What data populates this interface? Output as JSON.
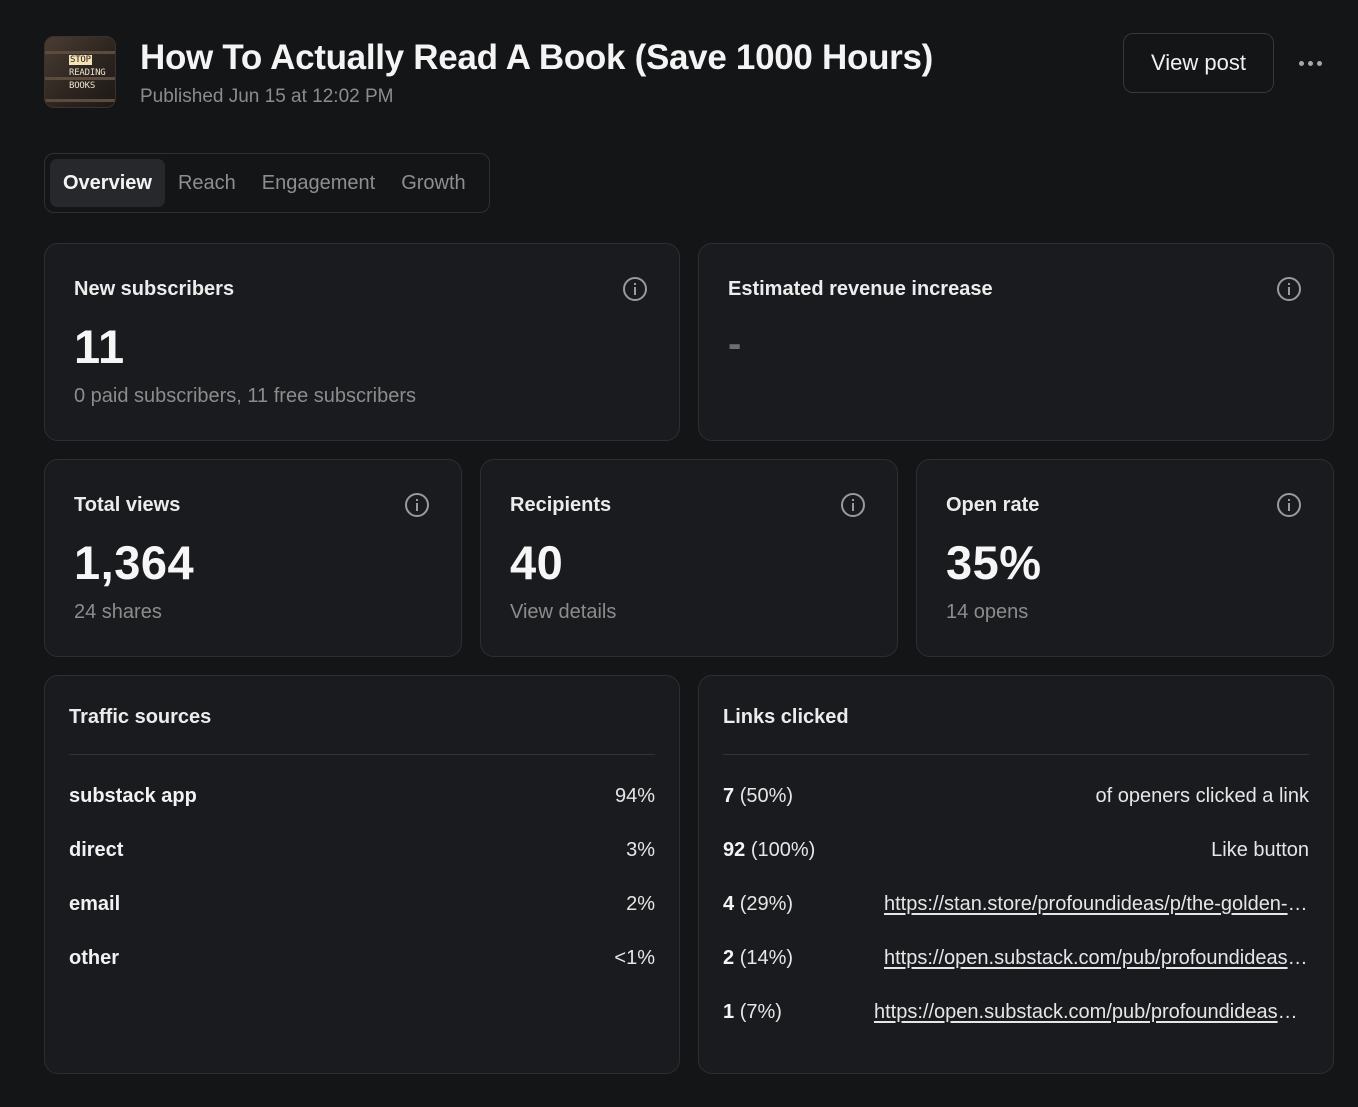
{
  "header": {
    "thumbnail_text": [
      "STOP",
      "READING",
      "BOOKS"
    ],
    "title": "How To Actually Read A Book (Save 1000 Hours)",
    "published": "Published Jun 15 at 12:02 PM",
    "view_post_label": "View post",
    "more_icon": "more-horizontal-icon"
  },
  "tabs": [
    {
      "label": "Overview",
      "active": true
    },
    {
      "label": "Reach",
      "active": false
    },
    {
      "label": "Engagement",
      "active": false
    },
    {
      "label": "Growth",
      "active": false
    }
  ],
  "stats": {
    "new_subscribers": {
      "label": "New subscribers",
      "value": "11",
      "sub": "0 paid subscribers, 11 free subscribers"
    },
    "revenue": {
      "label": "Estimated revenue increase",
      "value": "-"
    },
    "total_views": {
      "label": "Total views",
      "value": "1,364",
      "sub": "24 shares"
    },
    "recipients": {
      "label": "Recipients",
      "value": "40",
      "sub": "View details"
    },
    "open_rate": {
      "label": "Open rate",
      "value": "35%",
      "sub": "14 opens"
    }
  },
  "traffic_sources": {
    "title": "Traffic sources",
    "rows": [
      {
        "name": "substack app",
        "pct": "94%"
      },
      {
        "name": "direct",
        "pct": "3%"
      },
      {
        "name": "email",
        "pct": "2%"
      },
      {
        "name": "other",
        "pct": "<1%"
      }
    ]
  },
  "links_clicked": {
    "title": "Links clicked",
    "rows": [
      {
        "count": "7",
        "pct": "(50%)",
        "desc": "of openers clicked a link"
      },
      {
        "count": "92",
        "pct": "(100%)",
        "desc": "Like button"
      },
      {
        "count": "4",
        "pct": "(29%)",
        "url": "https://stan.store/profoundideas/p/the-golden-ratio"
      },
      {
        "count": "2",
        "pct": "(14%)",
        "url": "https://open.substack.com/pub/profoundideas/p/how-to-read"
      },
      {
        "count": "1",
        "pct": "(7%)",
        "url": "https://open.substack.com/pub/profoundideas/p/reading-notes"
      }
    ]
  },
  "colors": {
    "background": "#141517",
    "card": "#1a1b1e",
    "border": "#2c2e32",
    "muted": "#8c8c8c"
  }
}
